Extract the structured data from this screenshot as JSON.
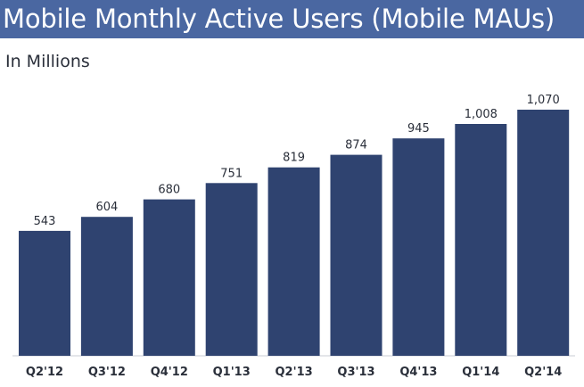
{
  "title": "Mobile Monthly Active Users (Mobile MAUs)",
  "subtitle": "In Millions",
  "colors": {
    "title_bar": "#4a67a1",
    "bar": "#2f4370",
    "text": "#2a2f3a"
  },
  "chart_data": {
    "type": "bar",
    "title": "Mobile Monthly Active Users (Mobile MAUs)",
    "subtitle": "In Millions",
    "xlabel": "",
    "ylabel": "",
    "categories": [
      "Q2'12",
      "Q3'12",
      "Q4'12",
      "Q1'13",
      "Q2'13",
      "Q3'13",
      "Q4'13",
      "Q1'14",
      "Q2'14"
    ],
    "values": [
      543,
      604,
      680,
      751,
      819,
      874,
      945,
      1008,
      1070
    ],
    "value_labels": [
      "543",
      "604",
      "680",
      "751",
      "819",
      "874",
      "945",
      "1,008",
      "1,070"
    ],
    "ylim": [
      0,
      1070
    ],
    "grid": false,
    "legend": "none"
  }
}
